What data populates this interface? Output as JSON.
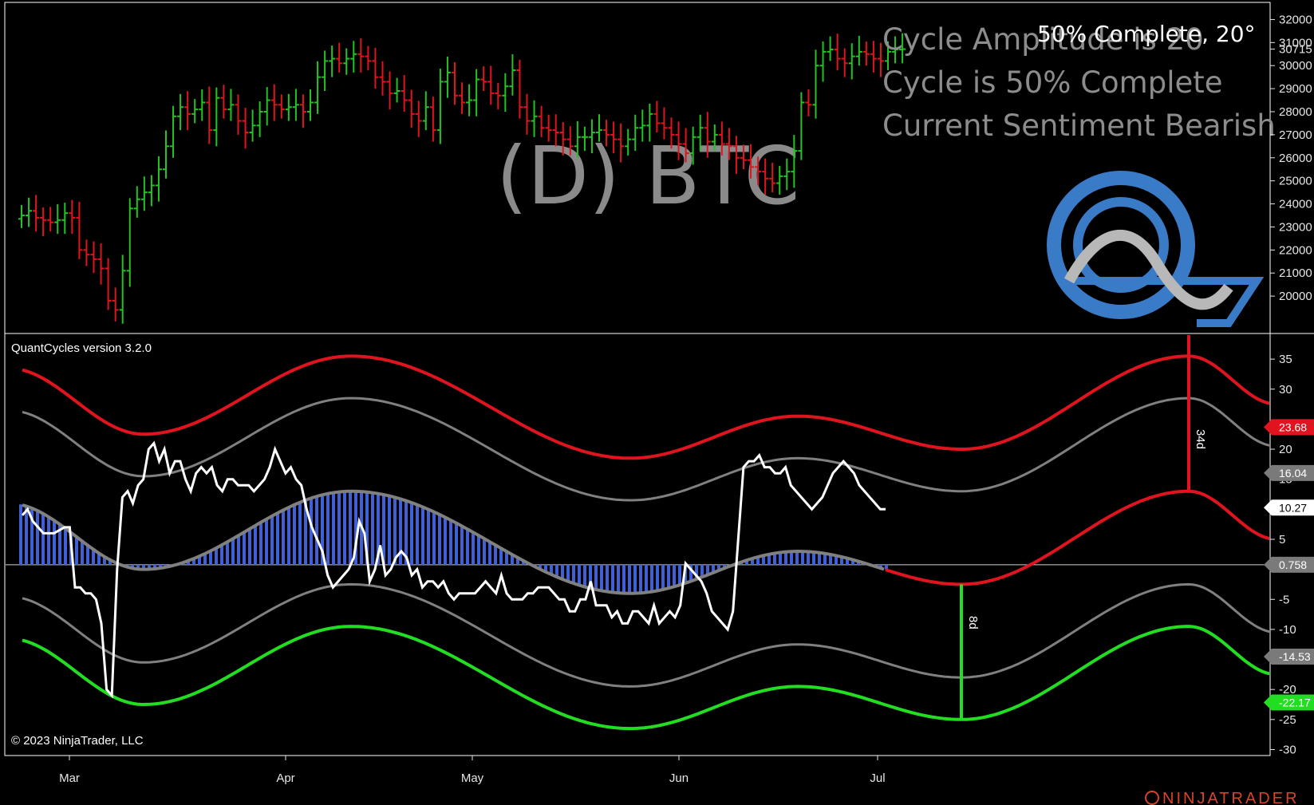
{
  "symbol_title": "(D) BTC",
  "status_badge": "50% Complete, 20°",
  "overlay_lines": [
    "Cycle Amplitude is 20",
    "Cycle is 50% Complete",
    "Current Sentiment Bearish"
  ],
  "indicator_name": "QuantCycles version 3.2.0",
  "copyright": "© 2023 NinjaTrader, LLC",
  "brand": "NINJATRADER",
  "price_axis": {
    "ticks": [
      "32000",
      "31000",
      "30715",
      "30000",
      "29000",
      "28000",
      "27000",
      "26000",
      "25000",
      "24000",
      "23000",
      "22000",
      "21000",
      "20000"
    ],
    "current_price": "30715"
  },
  "osc_axis": {
    "ticks": [
      "35",
      "30",
      "20",
      "15",
      "5",
      "-5",
      "-10",
      "-20",
      "-25",
      "-30"
    ],
    "badges": [
      {
        "label": "23.68",
        "value": 23.68,
        "color": "#e0141e"
      },
      {
        "label": "16.04",
        "value": 16.04,
        "color": "#7a7a7a"
      },
      {
        "label": "10.27",
        "value": 10.27,
        "color": "#ffffff"
      },
      {
        "label": "0.758",
        "value": 0.758,
        "color": "#7a7a7a"
      },
      {
        "label": "-14.53",
        "value": -14.53,
        "color": "#7a7a7a"
      },
      {
        "label": "-22.17",
        "value": -22.17,
        "color": "#22dd22"
      }
    ]
  },
  "x_axis": {
    "months": [
      "Mar",
      "Apr",
      "May",
      "Jun",
      "Jul"
    ]
  },
  "annotations": {
    "peak_label": "34d",
    "trough_label": "8d"
  },
  "colors": {
    "up_bar": "#22c322",
    "down_bar": "#e0141e",
    "red_band": "#e0141e",
    "green_band": "#22dd22",
    "gray_band": "#808080",
    "histogram": "#4060d8",
    "oscillator": "#ffffff",
    "logo_blue": "#3a7bc8",
    "logo_gray": "#b8b8b8"
  },
  "chart_data": [
    {
      "type": "ohlc",
      "title": "(D) BTC",
      "ylim": [
        19000,
        32500
      ],
      "close_series": [
        23500,
        23700,
        23400,
        23300,
        23200,
        23300,
        23600,
        23400,
        22000,
        21800,
        21600,
        21200,
        19800,
        19400,
        21100,
        23800,
        24200,
        24500,
        24800,
        25500,
        26500,
        27800,
        28200,
        27900,
        28100,
        28400,
        27200,
        28600,
        28100,
        28300,
        27600,
        27100,
        27400,
        28000,
        28500,
        28300,
        28100,
        28200,
        28300,
        28000,
        28400,
        29500,
        30200,
        30300,
        30100,
        30300,
        30500,
        30400,
        30200,
        29500,
        29300,
        28800,
        28900,
        28500,
        27900,
        27600,
        28200,
        27200,
        29300,
        29700,
        28700,
        28400,
        28500,
        29400,
        29300,
        28800,
        28700,
        29100,
        29800,
        28200,
        27600,
        27800,
        27300,
        27200,
        27100,
        26800,
        26500,
        26900,
        26900,
        27100,
        27200,
        27000,
        26800,
        26500,
        26800,
        27300,
        27400,
        27900,
        27500,
        27300,
        27000,
        26600,
        26200,
        26900,
        27300,
        26700,
        27000,
        26600,
        26500,
        26000,
        25900,
        25600,
        25400,
        25100,
        24900,
        25200,
        25400,
        26300,
        28400,
        28300,
        30000,
        30600,
        30700,
        30300,
        30100,
        30400,
        30600,
        30500,
        30300,
        30200,
        30600,
        30700,
        30715
      ]
    },
    {
      "type": "line",
      "title": "QuantCycles version 3.2.0",
      "ylim": [
        -31,
        39
      ],
      "series": [
        {
          "values": [
            9,
            10,
            8,
            7,
            6,
            6,
            6,
            6.5,
            7,
            7,
            -3,
            -3,
            -4,
            -4,
            -5,
            -9,
            -20,
            -21,
            0,
            12,
            13,
            11,
            14,
            15,
            20,
            21,
            18,
            20,
            16,
            18,
            18,
            15,
            13,
            16,
            17,
            16,
            17,
            14,
            13,
            15,
            15,
            14,
            14,
            14,
            13,
            14,
            15,
            17,
            20,
            18,
            16,
            17,
            15,
            14,
            10,
            7,
            5,
            3,
            -1,
            -3,
            -2,
            -1,
            0,
            2,
            8,
            6,
            -2,
            0,
            4,
            -1,
            0,
            2,
            3,
            2,
            -1,
            0,
            -3,
            -2,
            -2,
            -3,
            -2,
            -4,
            -5,
            -4,
            -4,
            -4,
            -4,
            -3,
            -2,
            -3,
            -4,
            -1,
            -4,
            -5,
            -5,
            -5,
            -4,
            -4,
            -3,
            -3,
            -3,
            -4,
            -5,
            -5,
            -7,
            -7,
            -5,
            -5,
            -2,
            -6,
            -6,
            -6,
            -8,
            -7,
            -9,
            -9,
            -7,
            -7,
            -8,
            -9,
            -6,
            -9,
            -8,
            -7,
            -8,
            -6,
            1,
            0,
            -1,
            -2,
            -4,
            -7,
            -8,
            -9,
            -10,
            -7,
            5,
            17,
            18,
            18,
            19,
            17,
            17,
            16,
            16,
            17,
            14,
            13,
            12,
            11,
            10,
            11,
            12,
            14,
            16,
            17,
            18,
            17,
            16,
            14,
            13,
            12,
            11,
            10,
            10
          ]
        }
      ]
    }
  ]
}
